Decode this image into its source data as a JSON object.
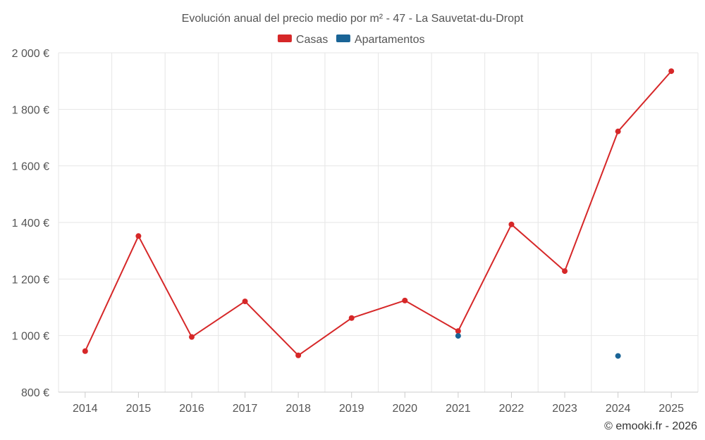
{
  "chart_data": {
    "type": "line",
    "title": "Evolución anual del precio medio por m² - 47 - La Sauvetat-du-Dropt",
    "x": [
      "2014",
      "2015",
      "2016",
      "2017",
      "2018",
      "2019",
      "2020",
      "2021",
      "2022",
      "2023",
      "2024",
      "2025"
    ],
    "y_ticks": [
      "800 €",
      "1 000 €",
      "1 200 €",
      "1 400 €",
      "1 600 €",
      "1 800 €",
      "2 000 €"
    ],
    "y_tick_values": [
      800,
      1000,
      1200,
      1400,
      1600,
      1800,
      2000
    ],
    "ylim": [
      800,
      2000
    ],
    "legend_position": "top-center",
    "series": [
      {
        "name": "Casas",
        "color": "#d62728",
        "line": true,
        "values": [
          945,
          1352,
          995,
          1121,
          930,
          1062,
          1124,
          1016,
          1393,
          1228,
          1722,
          1935
        ]
      },
      {
        "name": "Apartamentos",
        "color": "#1a6496",
        "line": false,
        "values": [
          null,
          null,
          null,
          null,
          null,
          null,
          null,
          999,
          null,
          null,
          928,
          null
        ]
      }
    ],
    "credit": "© emooki.fr - 2026"
  }
}
